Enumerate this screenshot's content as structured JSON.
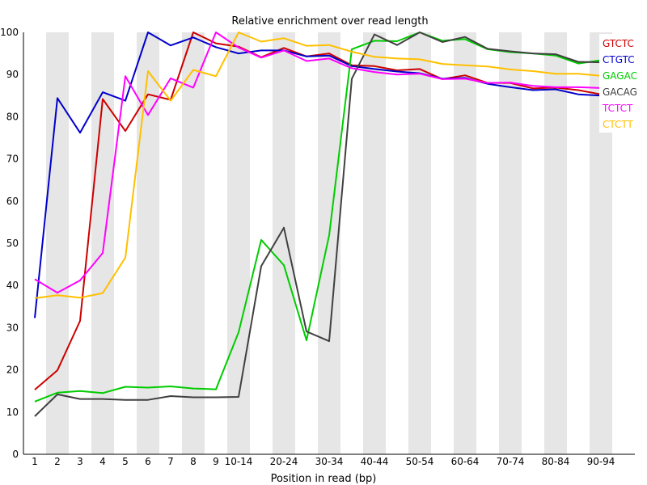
{
  "chart_data": {
    "type": "line",
    "title": "Relative enrichment over read length",
    "xlabel": "Position in read (bp)",
    "ylabel": "",
    "ylim": [
      0,
      100
    ],
    "yticks": [
      0,
      10,
      20,
      30,
      40,
      50,
      60,
      70,
      80,
      90,
      100
    ],
    "categories": [
      "1",
      "2",
      "3",
      "4",
      "5",
      "6",
      "7",
      "8",
      "9",
      "10-14",
      "15-19",
      "20-24",
      "25-29",
      "30-34",
      "35-39",
      "40-44",
      "45-49",
      "50-54",
      "55-59",
      "60-64",
      "65-69",
      "70-74",
      "75-79",
      "80-84",
      "85-89",
      "90-94",
      "95-99"
    ],
    "tick_labels": [
      "1",
      "2",
      "3",
      "4",
      "5",
      "6",
      "7",
      "8",
      "9",
      "10-14",
      "",
      "20-24",
      "",
      "30-34",
      "",
      "40-44",
      "",
      "50-54",
      "",
      "60-64",
      "",
      "70-74",
      "",
      "80-84",
      "",
      "90-94",
      ""
    ],
    "grid": "alternating-bands",
    "legend_position": "top-right",
    "series": [
      {
        "name": "GTCTC",
        "color": "#cc0000",
        "values": [
          15.3,
          19.9,
          31.6,
          84.2,
          76.6,
          85.3,
          84.0,
          100.0,
          97.4,
          96.6,
          94.1,
          96.3,
          94.3,
          95.0,
          92.2,
          92.0,
          91.0,
          91.3,
          88.9,
          89.8,
          88.0,
          88.0,
          86.7,
          86.9,
          86.3,
          85.3,
          null
        ]
      },
      {
        "name": "CTGTC",
        "color": "#0000cc",
        "values": [
          32.3,
          84.4,
          76.2,
          85.8,
          83.8,
          100.0,
          96.9,
          98.8,
          96.5,
          95.0,
          95.7,
          95.7,
          94.3,
          94.5,
          92.0,
          91.3,
          90.7,
          90.3,
          89.0,
          89.2,
          87.8,
          87.0,
          86.3,
          86.5,
          85.3,
          85.0,
          null
        ]
      },
      {
        "name": "GAGAC",
        "color": "#00cc00",
        "values": [
          12.5,
          14.6,
          15.0,
          14.5,
          16.0,
          15.8,
          16.1,
          15.6,
          15.4,
          28.9,
          50.8,
          44.8,
          27.0,
          51.9,
          96.0,
          98.0,
          97.9,
          100.0,
          98.0,
          98.4,
          96.0,
          95.3,
          95.0,
          94.5,
          92.6,
          93.4,
          null
        ]
      },
      {
        "name": "GACAG",
        "color": "#404040",
        "values": [
          9.0,
          14.2,
          13.1,
          13.1,
          12.9,
          12.9,
          13.8,
          13.5,
          13.5,
          13.6,
          44.6,
          53.7,
          29.1,
          26.8,
          89.0,
          99.5,
          97.0,
          100.0,
          97.7,
          98.9,
          96.1,
          95.5,
          95.0,
          94.8,
          93.0,
          92.9,
          null
        ]
      },
      {
        "name": "TCTCT",
        "color": "#ff00ff",
        "values": [
          41.5,
          38.3,
          41.2,
          47.7,
          89.6,
          80.4,
          89.1,
          86.9,
          100.0,
          96.4,
          94.0,
          95.7,
          93.2,
          93.8,
          91.5,
          90.6,
          90.0,
          90.2,
          88.9,
          89.0,
          88.0,
          88.1,
          87.3,
          87.0,
          87.0,
          86.8,
          null
        ]
      },
      {
        "name": "CTCTT",
        "color": "#ffc000",
        "values": [
          37.0,
          37.7,
          37.1,
          38.2,
          46.6,
          90.8,
          83.8,
          91.1,
          89.6,
          100.0,
          97.8,
          98.6,
          96.8,
          97.0,
          95.4,
          94.2,
          93.8,
          93.6,
          92.5,
          92.2,
          91.9,
          91.2,
          90.8,
          90.2,
          90.2,
          89.7,
          null
        ]
      }
    ]
  }
}
